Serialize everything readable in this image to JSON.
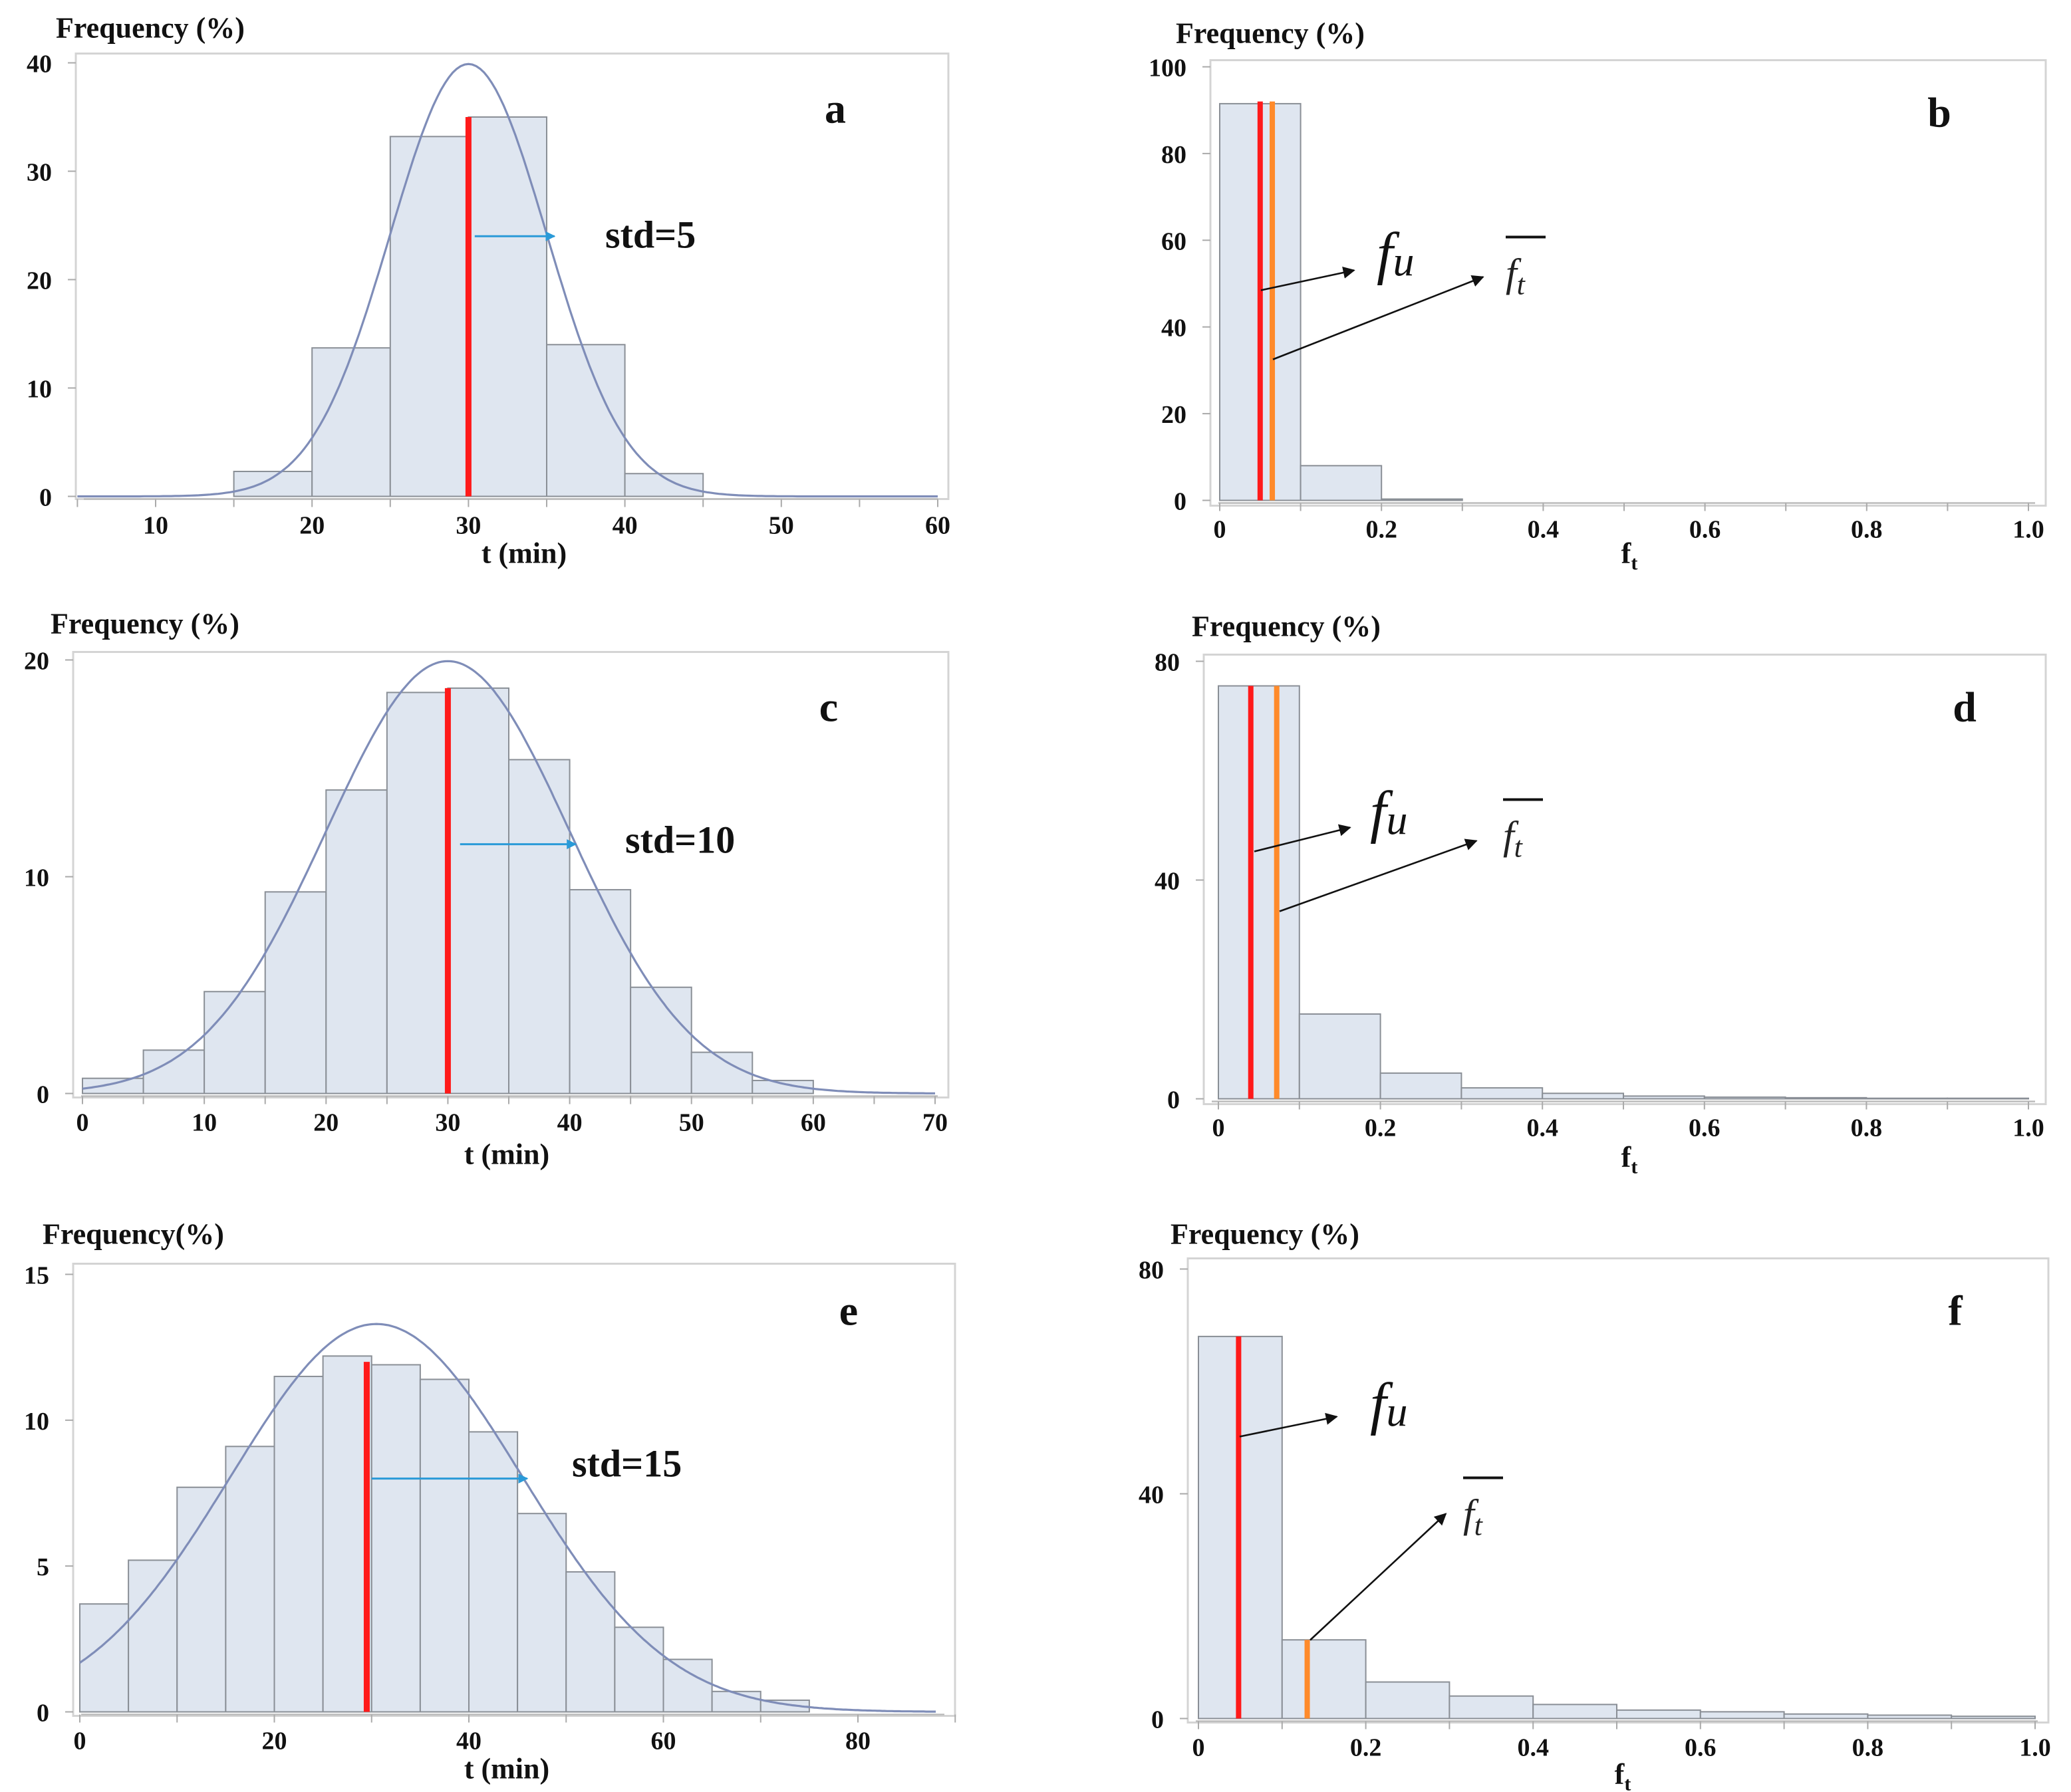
{
  "chart_data": [
    {
      "id": "a",
      "type": "bar",
      "panel_label": "a",
      "title": "Frequency (%)",
      "xlabel": "t (min)",
      "ylabel": "Frequency (%)",
      "bin_width": 5,
      "bin_starts": [
        15,
        20,
        25,
        30,
        35,
        40
      ],
      "values": [
        2.3,
        13.7,
        33.2,
        35.0,
        14.0,
        2.1
      ],
      "xlim": [
        4.7,
        61
      ],
      "ylim": [
        0,
        41
      ],
      "xticks": [
        "10",
        "20",
        "30",
        "40",
        "50",
        "60"
      ],
      "xtick_values": [
        10,
        20,
        30,
        40,
        50,
        60
      ],
      "yticks": [
        "0",
        "10",
        "20",
        "30",
        "40"
      ],
      "ytick_values": [
        0,
        10,
        20,
        30,
        40
      ],
      "normal_curve": {
        "mean": 30,
        "std": 5
      },
      "mean_line": {
        "x": 30,
        "height": 35
      },
      "annotation": {
        "text": "std=5",
        "arrow_from": 30.4,
        "arrow_to": 35.5,
        "arrow_y": 24
      }
    },
    {
      "id": "b",
      "type": "bar",
      "panel_label": "b",
      "title": "Frequency (%)",
      "xlabel": "f",
      "xlabel_sub": "t",
      "ylabel": "Frequency (%)",
      "bin_width": 0.1,
      "bin_starts": [
        0,
        0.1,
        0.2
      ],
      "values": [
        91.5,
        8.0,
        0.3
      ],
      "xlim": [
        -0.012,
        1.02
      ],
      "ylim": [
        0,
        101
      ],
      "xticks": [
        "0",
        "0.2",
        "0.4",
        "0.6",
        "0.8",
        "1.0"
      ],
      "xtick_values": [
        0,
        0.2,
        0.4,
        0.6,
        0.8,
        1.0
      ],
      "yticks": [
        "0",
        "20",
        "40",
        "60",
        "80",
        "100"
      ],
      "ytick_values": [
        0,
        20,
        40,
        60,
        80,
        100
      ],
      "fu_line": {
        "x": 0.05,
        "height": 92
      },
      "ft_mean_line": {
        "x": 0.065,
        "height": 92
      },
      "fu_label": {
        "main": "f",
        "sub": "u"
      },
      "ft_label": {
        "main": "f",
        "sub": "t"
      }
    },
    {
      "id": "c",
      "type": "bar",
      "panel_label": "c",
      "title": "Frequency (%)",
      "xlabel": "t (min)",
      "ylabel": "Frequency (%)",
      "bin_width": 5,
      "bin_starts": [
        0,
        5,
        10,
        15,
        20,
        25,
        30,
        35,
        40,
        45,
        50,
        55
      ],
      "values": [
        0.7,
        2.0,
        4.7,
        9.3,
        14.0,
        18.5,
        18.7,
        15.4,
        9.4,
        4.9,
        1.9,
        0.6
      ],
      "xlim": [
        -0.8,
        71
      ],
      "ylim": [
        0,
        20.3
      ],
      "xticks": [
        "0",
        "10",
        "20",
        "30",
        "40",
        "50",
        "60",
        "70"
      ],
      "xtick_values": [
        0,
        10,
        20,
        30,
        40,
        50,
        60,
        70
      ],
      "yticks": [
        "0",
        "10",
        "20"
      ],
      "ytick_values": [
        0,
        10,
        20
      ],
      "normal_curve": {
        "mean": 30,
        "std": 10
      },
      "mean_line": {
        "x": 30,
        "height": 18.7
      },
      "annotation": {
        "text": "std=10",
        "arrow_from": 31,
        "arrow_to": 40.5,
        "arrow_y": 11.5
      }
    },
    {
      "id": "d",
      "type": "bar",
      "panel_label": "d",
      "title": "Frequency (%)",
      "xlabel": "f",
      "xlabel_sub": "t",
      "ylabel": "Frequency (%)",
      "bin_width": 0.1,
      "bin_starts": [
        0,
        0.1,
        0.2,
        0.3,
        0.4,
        0.5,
        0.6,
        0.7,
        0.8,
        0.9
      ],
      "values": [
        75.5,
        15.5,
        4.7,
        2.0,
        1.0,
        0.5,
        0.3,
        0.2,
        0.1,
        0.1
      ],
      "xlim": [
        -0.018,
        1.02
      ],
      "ylim": [
        0,
        80.5
      ],
      "xticks": [
        "0",
        "0.2",
        "0.4",
        "0.6",
        "0.8",
        "1.0"
      ],
      "xtick_values": [
        0,
        0.2,
        0.4,
        0.6,
        0.8,
        1.0
      ],
      "yticks": [
        "0",
        "40",
        "80"
      ],
      "ytick_values": [
        0,
        40,
        80
      ],
      "fu_line": {
        "x": 0.04,
        "height": 75.5
      },
      "ft_mean_line": {
        "x": 0.072,
        "height": 75.5
      },
      "fu_label": {
        "main": "f",
        "sub": "u"
      },
      "ft_label": {
        "main": "f",
        "sub": "t"
      }
    },
    {
      "id": "e",
      "type": "bar",
      "panel_label": "e",
      "title": "Frequency(%)",
      "xlabel": "t (min)",
      "ylabel": "Frequency(%)",
      "bin_width": 5,
      "bin_starts": [
        0,
        5,
        10,
        15,
        20,
        25,
        30,
        35,
        40,
        45,
        50,
        55,
        60,
        65,
        70
      ],
      "values": [
        3.7,
        5.2,
        7.7,
        9.1,
        11.5,
        12.2,
        11.9,
        11.4,
        9.6,
        6.8,
        4.8,
        2.9,
        1.8,
        0.7,
        0.4
      ],
      "xlim": [
        -0.7,
        90
      ],
      "ylim": [
        0,
        15.1
      ],
      "xticks": [
        "0",
        "20",
        "40",
        "60",
        "80"
      ],
      "xtick_values": [
        0,
        20,
        40,
        60,
        80
      ],
      "yticks": [
        "0",
        "5",
        "10",
        "15"
      ],
      "ytick_values": [
        0,
        5,
        10,
        15
      ],
      "normal_curve": {
        "mean": 30.5,
        "std": 15
      },
      "mean_line": {
        "x": 29.5,
        "height": 12.0
      },
      "annotation": {
        "text": "std=15",
        "arrow_from": 30,
        "arrow_to": 46,
        "arrow_y": 8
      }
    },
    {
      "id": "f",
      "type": "bar",
      "panel_label": "f",
      "title": "Frequency (%)",
      "xlabel": "f",
      "xlabel_sub": "t",
      "ylabel": "Frequency (%)",
      "bin_width": 0.1,
      "bin_starts": [
        0,
        0.1,
        0.2,
        0.3,
        0.4,
        0.5,
        0.6,
        0.7,
        0.8,
        0.9
      ],
      "values": [
        68,
        14,
        6.5,
        4.0,
        2.5,
        1.5,
        1.2,
        0.8,
        0.6,
        0.4
      ],
      "xlim": [
        -0.013,
        1.015
      ],
      "ylim": [
        0,
        80.5
      ],
      "xticks": [
        "0",
        "0.2",
        "0.4",
        "0.6",
        "0.8",
        "1.0"
      ],
      "xtick_values": [
        0,
        0.2,
        0.4,
        0.6,
        0.8,
        1.0
      ],
      "yticks": [
        "0",
        "40",
        "80"
      ],
      "ytick_values": [
        0,
        40,
        80
      ],
      "fu_line": {
        "x": 0.048,
        "height": 68
      },
      "ft_mean_line": {
        "x": 0.13,
        "height": 14
      },
      "fu_label": {
        "main": "f",
        "sub": "u"
      },
      "ft_label": {
        "main": "f",
        "sub": "t"
      }
    }
  ],
  "colors": {
    "bar_fill": "#dfe6f0",
    "bar_stroke": "#8a8f96",
    "curve": "#7f8db8",
    "mean_line": "#ff1a1a",
    "ft_line": "#ff8a2a",
    "std_arrow": "#2a9ad8",
    "annotation_arrow": "#111111"
  }
}
